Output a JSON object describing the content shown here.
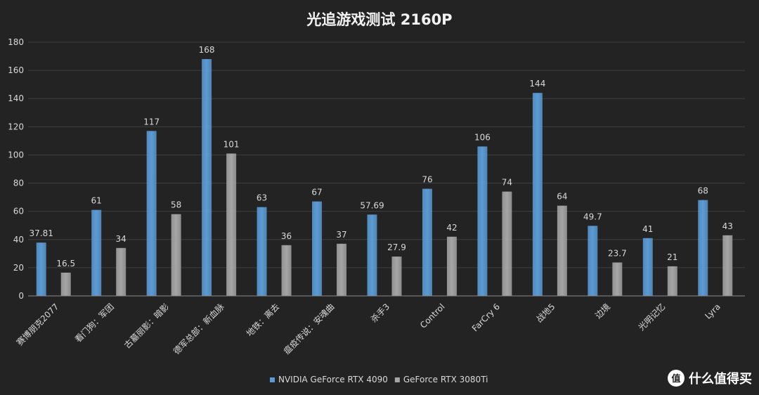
{
  "chart_data": {
    "type": "bar",
    "title": "光追游戏测试 2160P",
    "xlabel": "",
    "ylabel": "",
    "ylim": [
      0,
      180
    ],
    "yticks": [
      0,
      20,
      40,
      60,
      80,
      100,
      120,
      140,
      160,
      180
    ],
    "grid": true,
    "legend": "bottom-center",
    "categories": [
      "赛博朋克2077",
      "看门狗：军团",
      "古墓丽影：暗影",
      "德军总部：新血脉",
      "地铁：离去",
      "瘟疫传说：安魂曲",
      "杀手3",
      "Control",
      "FarCry 6",
      "战地5",
      "边境",
      "光明记忆",
      "Lyra"
    ],
    "series": [
      {
        "name": "NVIDIA GeForce RTX 4090",
        "color": "#5b9bd5",
        "values": [
          37.81,
          61,
          117,
          168,
          63,
          67,
          57.69,
          76,
          106,
          144,
          49.7,
          41,
          68
        ],
        "labels": [
          "37.81",
          "61",
          "117",
          "168",
          "63",
          "67",
          "57.69",
          "76",
          "106",
          "144",
          "49.7",
          "41",
          "68"
        ]
      },
      {
        "name": "GeForce RTX 3080Ti",
        "color": "#a5a5a5",
        "values": [
          16.5,
          34,
          58,
          101,
          36,
          37,
          27.9,
          42,
          74,
          64,
          23.7,
          21,
          43
        ],
        "labels": [
          "16.5",
          "34",
          "58",
          "101",
          "36",
          "37",
          "27.9",
          "42",
          "74",
          "64",
          "23.7",
          "21",
          "43"
        ]
      }
    ]
  },
  "watermark": {
    "text": "什么值得买",
    "icon": "smzdm-logo-icon"
  }
}
